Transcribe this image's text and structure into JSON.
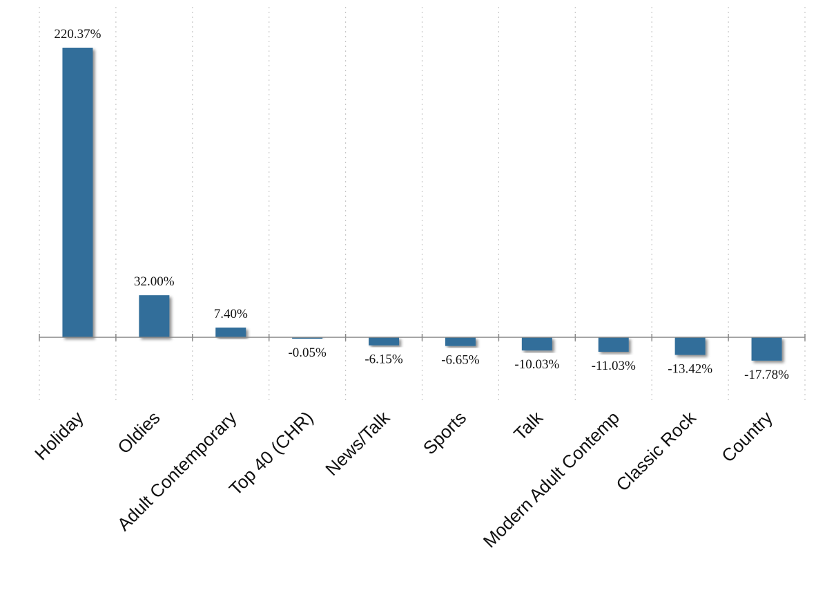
{
  "chart_data": {
    "type": "bar",
    "title": "",
    "xlabel": "",
    "ylabel": "",
    "categories": [
      "Holiday",
      "Oldies",
      "Adult Contemporary",
      "Top 40 (CHR)",
      "News/Talk",
      "Sports",
      "Talk",
      "Modern Adult Contemp",
      "Classic Rock",
      "Country"
    ],
    "values": [
      220.37,
      32.0,
      7.4,
      -0.05,
      -6.15,
      -6.65,
      -10.03,
      -11.03,
      -13.42,
      -17.78
    ],
    "data_labels": [
      "220.37%",
      "32.00%",
      "7.40%",
      "-0.05%",
      "-6.15%",
      "-6.65%",
      "-10.03%",
      "-11.03%",
      "-13.42%",
      "-17.78%"
    ],
    "value_unit": "%",
    "grid": "vertical dotted separators between categories",
    "legend": "none",
    "colors": {
      "bar": "#336e9a",
      "bar_shadow": "#9a9a9a",
      "axis": "#888888",
      "grid": "#c8c8c8",
      "text": "#111111"
    }
  }
}
